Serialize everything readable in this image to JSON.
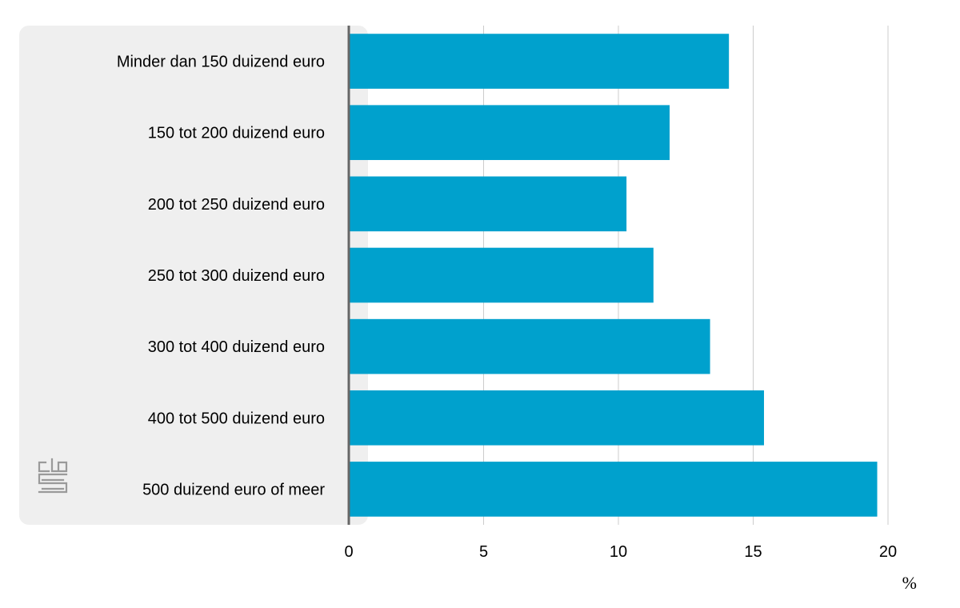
{
  "chart_data": {
    "type": "bar",
    "orientation": "horizontal",
    "categories": [
      "Minder dan 150 duizend euro",
      "150 tot 200 duizend euro",
      "200 tot 250 duizend euro",
      "250 tot 300 duizend euro",
      "300 tot 400 duizend euro",
      "400 tot 500 duizend euro",
      "500 duizend euro of meer"
    ],
    "values": [
      14.1,
      11.9,
      10.3,
      11.3,
      13.4,
      15.4,
      19.6
    ],
    "xlim": [
      0,
      20
    ],
    "xticks": [
      "0",
      "5",
      "10",
      "15",
      "20"
    ],
    "xunit": "%",
    "grid": true,
    "bar_color": "#00a1cd",
    "label_panel_color": "#efefef",
    "axis_color": "#666666",
    "grid_color": "#cccccc",
    "logo": "cbs-logo"
  }
}
